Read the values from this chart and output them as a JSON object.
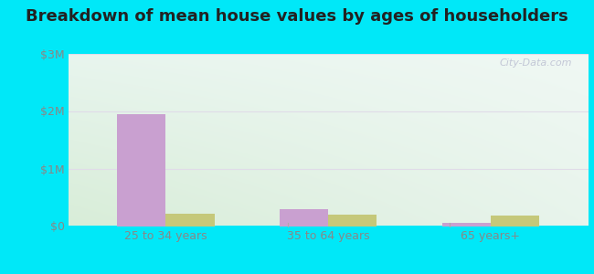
{
  "title": "Breakdown of mean house values by ages of householders",
  "categories": [
    "25 to 34 years",
    "35 to 64 years",
    "65 years+"
  ],
  "keachi_values": [
    1950000,
    300000,
    50000
  ],
  "louisiana_values": [
    220000,
    200000,
    190000
  ],
  "ylim": [
    0,
    3000000
  ],
  "yticks": [
    0,
    1000000,
    2000000,
    3000000
  ],
  "ytick_labels": [
    "$0",
    "$1M",
    "$2M",
    "$3M"
  ],
  "bar_width": 0.3,
  "keachi_color": "#c9a0d0",
  "louisiana_color": "#c5c87a",
  "bg_outer": "#00e8f8",
  "bg_topleft": "#e8f5ee",
  "bg_topright": "#f0f8f4",
  "bg_bottomleft": "#d8edd8",
  "bg_bottomright": "#e8f4ec",
  "grid_color": "#e0dce8",
  "tick_color": "#888888",
  "title_color": "#222222",
  "title_fontsize": 13,
  "tick_fontsize": 9,
  "legend_fontsize": 10,
  "watermark": "City-Data.com"
}
